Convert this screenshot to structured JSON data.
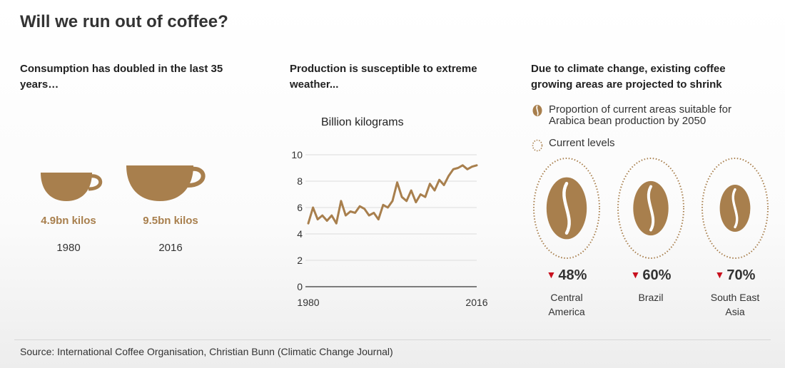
{
  "title": "Will we run out of coffee?",
  "consumption": {
    "heading": "Consumption has doubled in the last 35 years…",
    "cups": [
      {
        "value": "4.9bn kilos",
        "year": "1980",
        "kilos_bn": 4.9
      },
      {
        "value": "9.5bn kilos",
        "year": "2016",
        "kilos_bn": 9.5
      }
    ]
  },
  "production": {
    "heading": "Production is susceptible to extreme weather..."
  },
  "chart_data": {
    "type": "line",
    "title": "Billion kilograms",
    "xlabel": "",
    "ylabel": "",
    "x_ticks": [
      "1980",
      "2016"
    ],
    "y_ticks": [
      "0",
      "2",
      "4",
      "6",
      "8",
      "10"
    ],
    "xlim": [
      1980,
      2016
    ],
    "ylim": [
      0,
      10
    ],
    "grid": true,
    "color": "#a87f4d",
    "series": [
      {
        "x": [
          1980,
          1981,
          1982,
          1983,
          1984,
          1985,
          1986,
          1987,
          1988,
          1989,
          1990,
          1991,
          1992,
          1993,
          1994,
          1995,
          1996,
          1997,
          1998,
          1999,
          2000,
          2001,
          2002,
          2003,
          2004,
          2005,
          2006,
          2007,
          2008,
          2009,
          2010,
          2011,
          2012,
          2013,
          2014,
          2015,
          2016
        ],
        "values": [
          4.8,
          6.0,
          5.1,
          5.4,
          5.0,
          5.4,
          4.8,
          6.5,
          5.4,
          5.7,
          5.6,
          6.1,
          5.9,
          5.4,
          5.6,
          5.1,
          6.2,
          6.0,
          6.5,
          7.9,
          6.8,
          6.5,
          7.3,
          6.4,
          7.0,
          6.8,
          7.8,
          7.3,
          8.1,
          7.7,
          8.4,
          8.9,
          9.0,
          9.2,
          8.9,
          9.1,
          9.2
        ]
      }
    ]
  },
  "climate": {
    "heading": "Due to climate change, existing coffee growing areas are projected to shrink",
    "legend": {
      "bean": "Proportion of current areas suitable for Arabica bean production by 2050",
      "current": "Current levels"
    },
    "regions": [
      {
        "pct": "48%",
        "name_lines": [
          "Central",
          "America"
        ],
        "remaining": 0.52
      },
      {
        "pct": "60%",
        "name_lines": [
          "Brazil"
        ],
        "remaining": 0.4
      },
      {
        "pct": "70%",
        "name_lines": [
          "South East",
          "Asia"
        ],
        "remaining": 0.3
      }
    ]
  },
  "colors": {
    "coffee": "#a87f4d",
    "down_arrow": "#c8101e"
  },
  "source": "Source: International Coffee Organisation, Christian Bunn (Climatic Change Journal)"
}
